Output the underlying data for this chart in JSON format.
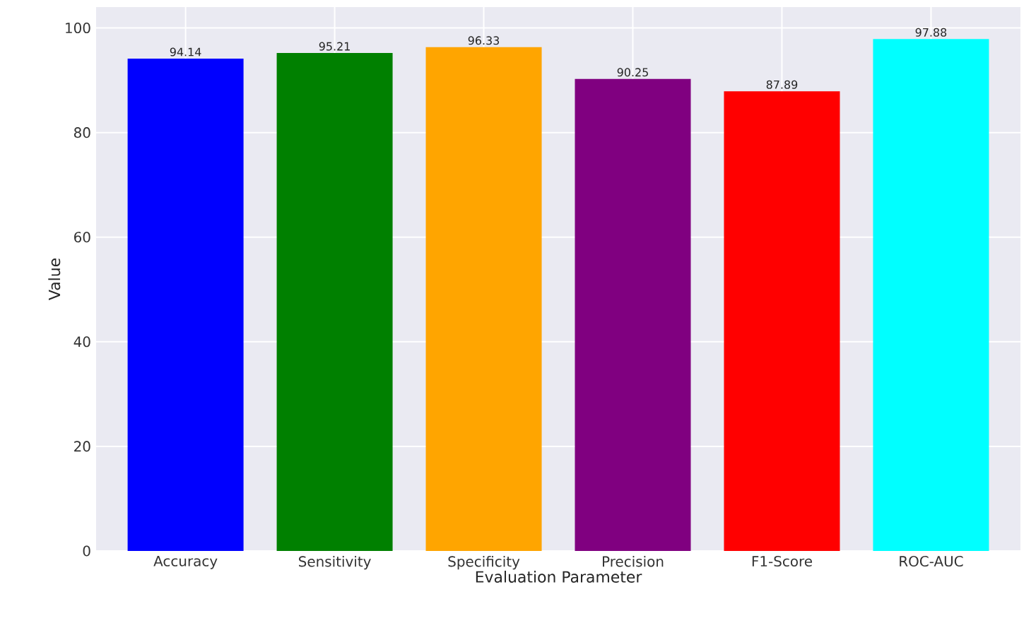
{
  "chart_data": {
    "type": "bar",
    "xlabel": "Evaluation Parameter",
    "ylabel": "Value",
    "categories": [
      "Accuracy",
      "Sensitivity",
      "Specificity",
      "Precision",
      "F1-Score",
      "ROC-AUC"
    ],
    "values": [
      94.14,
      95.21,
      96.33,
      90.25,
      87.89,
      97.88
    ],
    "colors": [
      "#0000ff",
      "#008000",
      "#ffa500",
      "#800080",
      "#ff0000",
      "#00ffff"
    ],
    "ylim": [
      0,
      104
    ],
    "yticks": [
      0,
      20,
      40,
      60,
      80,
      100
    ],
    "grid": true,
    "data_labels": true
  }
}
